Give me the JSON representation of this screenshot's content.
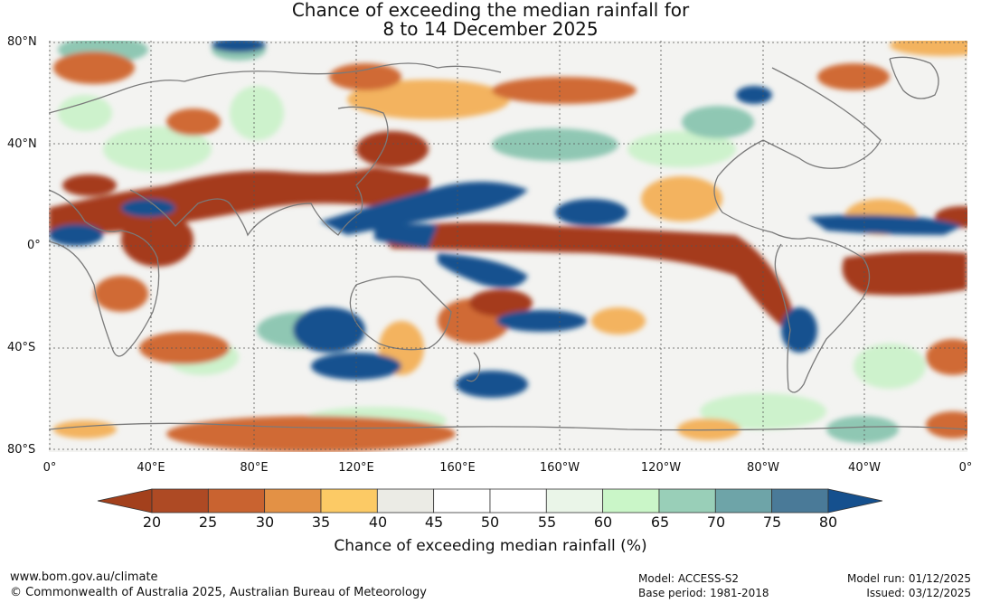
{
  "title_line1": "Chance of exceeding the median rainfall for",
  "title_line2": "8 to 14 December 2025",
  "lat_labels": [
    "80°N",
    "40°N",
    "0°",
    "40°S",
    "80°S"
  ],
  "lon_labels": [
    "0°",
    "40°E",
    "80°E",
    "120°E",
    "160°E",
    "160°W",
    "120°W",
    "80°W",
    "40°W",
    "0°"
  ],
  "colorbar": {
    "ticks": [
      "20",
      "25",
      "30",
      "35",
      "40",
      "45",
      "50",
      "55",
      "60",
      "65",
      "70",
      "75",
      "80"
    ],
    "colors": [
      "#a3401c",
      "#ae4a24",
      "#c96330",
      "#e39145",
      "#fcca65",
      "#ebebe5",
      "#ffffff",
      "#ffffff",
      "#eaf5e8",
      "#caf6c8",
      "#99cfb8",
      "#6ea4a8",
      "#4a7a98",
      "#15508e"
    ],
    "label": "Chance of exceeding median rainfall (%)"
  },
  "footer": {
    "url": "www.bom.gov.au/climate",
    "copyright": "© Commonwealth of Australia 2025, Australian Bureau of Meteorology",
    "model": "Model: ACCESS-S2",
    "base_period": "Base period: 1981-2018",
    "model_run": "Model run: 01/12/2025",
    "issued": "Issued: 03/12/2025"
  }
}
